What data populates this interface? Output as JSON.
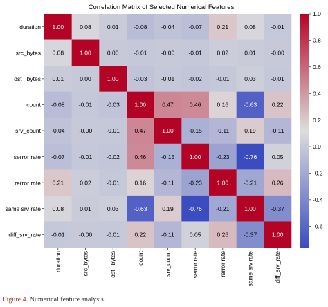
{
  "chart_data": {
    "type": "heatmap",
    "title": "Correlation Matrix of Selected Numerical Features",
    "labels": [
      "duration",
      "src_bytes",
      "dst _bytes",
      "count",
      "srv_count",
      "serror rate",
      "rerror rate",
      "same srv rate",
      "diff_srv_rate"
    ],
    "matrix": [
      [
        1.0,
        0.08,
        0.01,
        -0.08,
        -0.04,
        -0.07,
        0.21,
        0.08,
        -0.01
      ],
      [
        0.08,
        1.0,
        0.0,
        -0.01,
        -0.0,
        -0.01,
        0.02,
        0.01,
        -0.0
      ],
      [
        0.01,
        0.0,
        1.0,
        -0.03,
        -0.01,
        -0.02,
        -0.01,
        0.03,
        -0.01
      ],
      [
        -0.08,
        -0.01,
        -0.03,
        1.0,
        0.47,
        0.46,
        0.16,
        -0.63,
        0.22
      ],
      [
        -0.04,
        -0.0,
        -0.01,
        0.47,
        1.0,
        -0.15,
        -0.11,
        0.19,
        -0.11
      ],
      [
        -0.07,
        -0.01,
        -0.02,
        0.46,
        -0.15,
        1.0,
        -0.23,
        -0.76,
        0.05
      ],
      [
        0.21,
        0.02,
        -0.01,
        0.16,
        -0.11,
        -0.23,
        1.0,
        -0.21,
        0.26
      ],
      [
        0.08,
        0.01,
        0.03,
        -0.63,
        0.19,
        -0.76,
        -0.21,
        1.0,
        -0.37
      ],
      [
        -0.01,
        -0.0,
        -0.01,
        0.22,
        -0.11,
        0.05,
        0.26,
        -0.37,
        1.0
      ]
    ],
    "cell_labels": [
      [
        "1.00",
        "0.08",
        "0.01",
        "-0.08",
        "-0.04",
        "-0.07",
        "0.21",
        "0.08",
        "-0.01"
      ],
      [
        "0.08",
        "1.00",
        "0.00",
        "-0.01",
        "-0.00",
        "-0.01",
        "0.02",
        "0.01",
        "-0.00"
      ],
      [
        "0.01",
        "0.00",
        "1.00",
        "-0.03",
        "-0.01",
        "-0.02",
        "-0.01",
        "0.03",
        "-0.01"
      ],
      [
        "-0.08",
        "-0.01",
        "-0.03",
        "1.00",
        "0.47",
        "0.46",
        "0.16",
        "-0.63",
        "0.22"
      ],
      [
        "-0.04",
        "-0.00",
        "-0.01",
        "0.47",
        "1.00",
        "-0.15",
        "-0.11",
        "0.19",
        "-0.11"
      ],
      [
        "-0.07",
        "-0.01",
        "-0.02",
        "0.46",
        "-0.15",
        "1.00",
        "-0.23",
        "-0.76",
        "0.05"
      ],
      [
        "0.21",
        "0.02",
        "-0.01",
        "0.16",
        "-0.11",
        "-0.23",
        "1.00",
        "-0.21",
        "0.26"
      ],
      [
        "0.08",
        "0.01",
        "0.03",
        "-0.63",
        "0.19",
        "-0.76",
        "-0.21",
        "1.00",
        "-0.37"
      ],
      [
        "-0.01",
        "-0.00",
        "-0.01",
        "0.22",
        "-0.11",
        "0.05",
        "0.26",
        "-0.37",
        "1.00"
      ]
    ],
    "colormap": "coolwarm",
    "color_range": [
      -0.76,
      1.0
    ],
    "colorbar_ticks": [
      1.0,
      0.8,
      0.6,
      0.4,
      0.2,
      0.0,
      -0.2,
      -0.4,
      -0.6
    ],
    "colorbar_tick_labels": [
      "1.0",
      "0.8",
      "0.6",
      "0.4",
      "0.2",
      "0.0",
      "-0.2",
      "-0.4",
      "-0.6"
    ],
    "colors": {
      "low": "#3b4cc0",
      "mid": "#dddddd",
      "high": "#b40426"
    }
  },
  "caption": {
    "label": "Figure 4.",
    "text": " Numerical feature analysis."
  }
}
